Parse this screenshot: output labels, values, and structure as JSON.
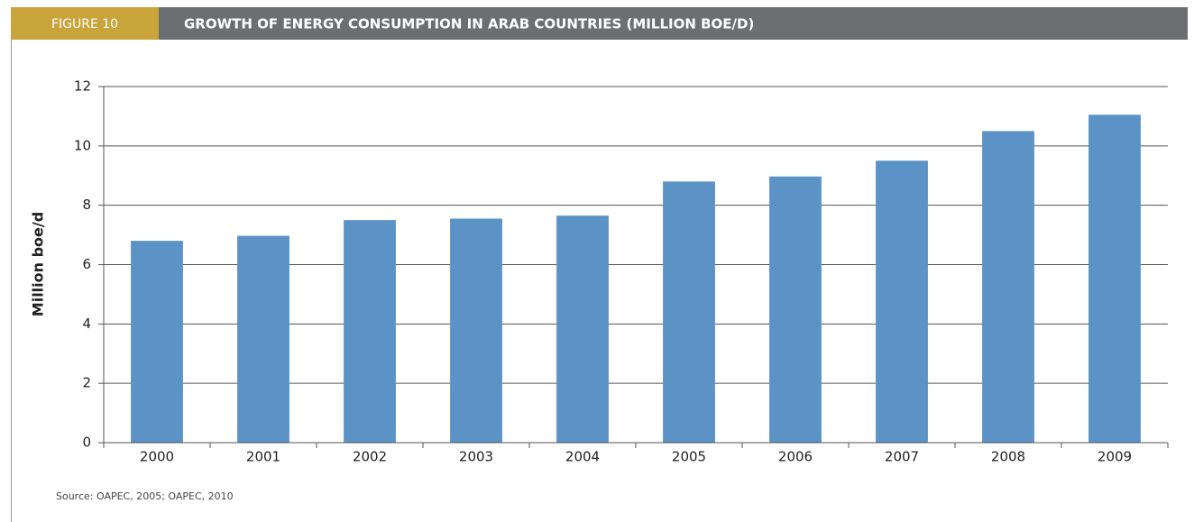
{
  "chart_data": {
    "type": "bar",
    "figure_label": "FIGURE 10",
    "title": "GROWTH OF ENERGY CONSUMPTION IN ARAB COUNTRIES (MILLION BOE/D)",
    "y_label": "Million boe/d",
    "source": "Source: OAPEC, 2005; OAPEC, 2010",
    "categories": [
      "2000",
      "2001",
      "2002",
      "2003",
      "2004",
      "2005",
      "2006",
      "2007",
      "2008",
      "2009"
    ],
    "values": [
      6.8,
      6.97,
      7.5,
      7.55,
      7.65,
      8.8,
      8.97,
      9.5,
      10.5,
      11.05
    ],
    "color": "#5b93c6",
    "ylim": [
      0,
      12
    ],
    "yticks": [
      0,
      2,
      4,
      6,
      8,
      10,
      12
    ],
    "grid": true
  }
}
